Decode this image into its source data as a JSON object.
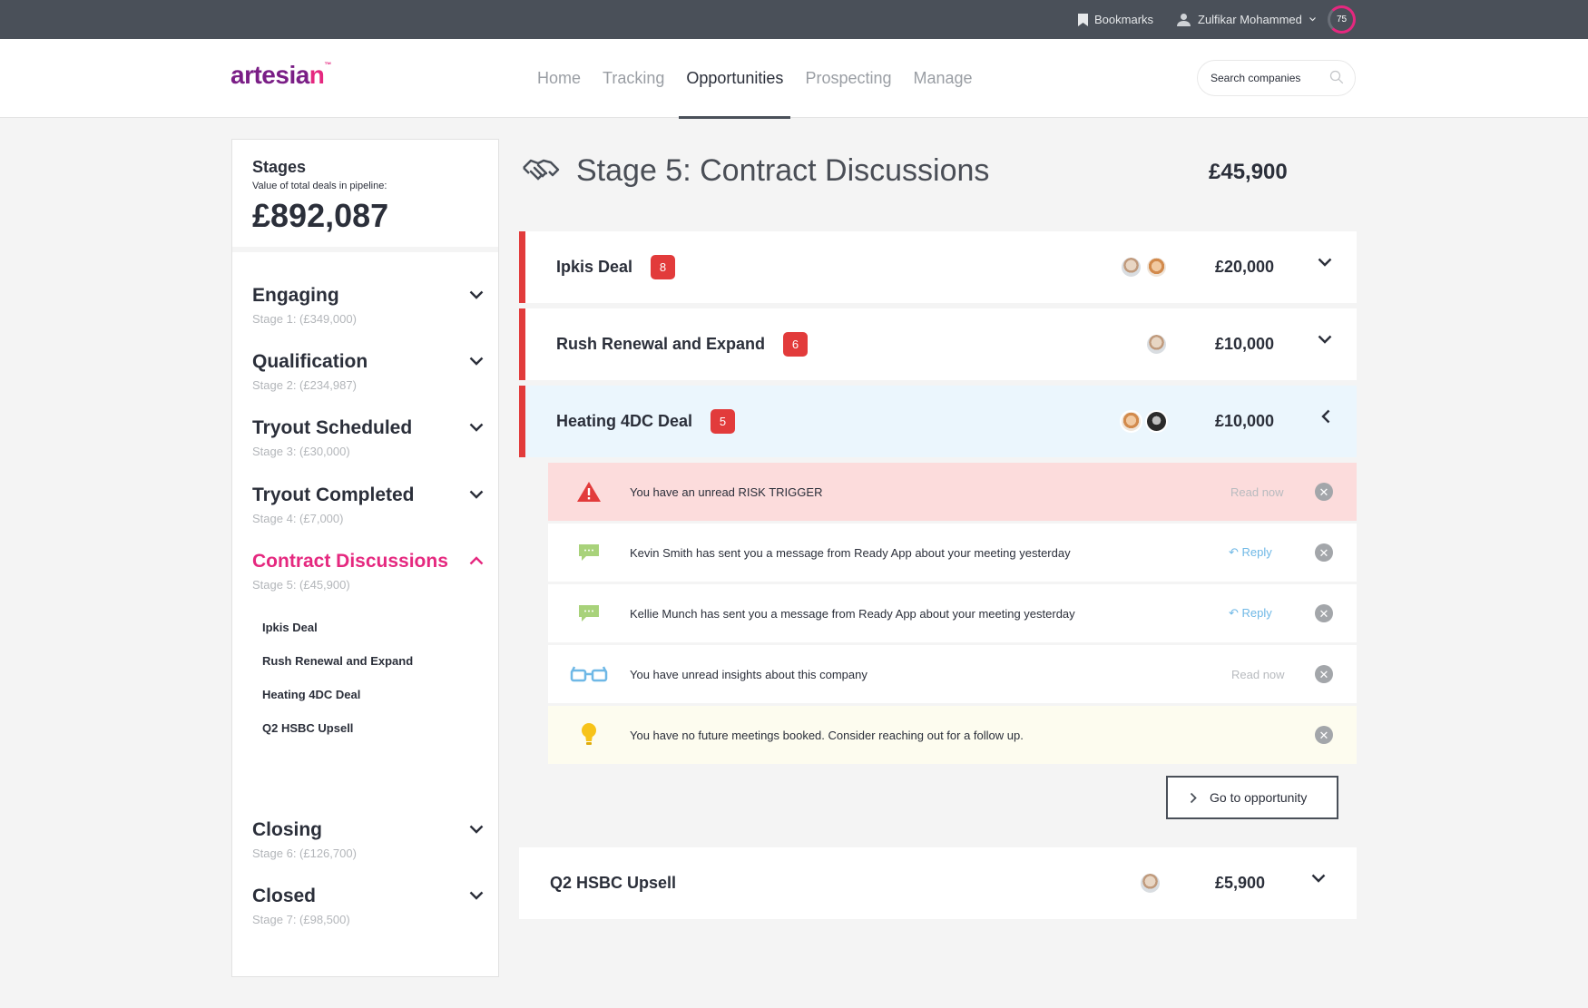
{
  "topbar": {
    "bookmarks_label": "Bookmarks",
    "user_name": "Zulfikar Mohammed",
    "score": "75"
  },
  "header": {
    "logo_text_main": "artesia",
    "logo_text_last": "n",
    "logo_tm": "™",
    "nav": [
      {
        "label": "Home"
      },
      {
        "label": "Tracking"
      },
      {
        "label": "Opportunities",
        "active": true
      },
      {
        "label": "Prospecting"
      },
      {
        "label": "Manage"
      }
    ],
    "search_placeholder": "Search companies"
  },
  "sidebar": {
    "title": "Stages",
    "subtitle": "Value of total deals in pipeline:",
    "total": "£892,087",
    "stages": [
      {
        "name": "Engaging",
        "meta": "Stage 1: (£349,000)"
      },
      {
        "name": "Qualification",
        "meta": "Stage 2: (£234,987)"
      },
      {
        "name": "Tryout Scheduled",
        "meta": "Stage 3: (£30,000)"
      },
      {
        "name": "Tryout Completed",
        "meta": "Stage 4: (£7,000)"
      },
      {
        "name": "Contract Discussions",
        "meta": "Stage 5: (£45,900)",
        "active": true
      },
      {
        "name": "Closing",
        "meta": "Stage 6: (£126,700)"
      },
      {
        "name": "Closed",
        "meta": "Stage 7: (£98,500)"
      }
    ],
    "stage5_deals": [
      "Ipkis Deal",
      "Rush Renewal and Expand",
      "Heating 4DC Deal",
      "Q2 HSBC Upsell"
    ]
  },
  "main": {
    "stage_title": "Stage 5: Contract Discussions",
    "stage_total": "£45,900",
    "deals": [
      {
        "name": "Ipkis Deal",
        "badge": "8",
        "value": "£20,000"
      },
      {
        "name": "Rush Renewal and Expand",
        "badge": "6",
        "value": "£10,000"
      },
      {
        "name": "Heating 4DC Deal",
        "badge": "5",
        "value": "£10,000"
      },
      {
        "name": "Q2 HSBC Upsell",
        "value": "£5,900"
      }
    ],
    "notifications": [
      {
        "icon": "warning-icon",
        "text": "You have an unread RISK TRIGGER",
        "action": "Read now"
      },
      {
        "icon": "message-icon",
        "text": "Kevin Smith has sent you a message from Ready App about your meeting yesterday",
        "action": "Reply"
      },
      {
        "icon": "message-icon",
        "text": "Kellie Munch has sent you a message from Ready App about your meeting yesterday",
        "action": "Reply"
      },
      {
        "icon": "glasses-icon",
        "text": "You have unread insights about this company",
        "action": "Read now"
      },
      {
        "icon": "lightbulb-icon",
        "text": "You have no future meetings booked. Consider reaching out for a follow up."
      }
    ],
    "goto_label": "Go to opportunity"
  },
  "colors": {
    "accent_pink": "#e5287f",
    "brand_purple": "#7a1e86",
    "badge_red": "#e23b3b",
    "topbar": "#4a5059"
  }
}
